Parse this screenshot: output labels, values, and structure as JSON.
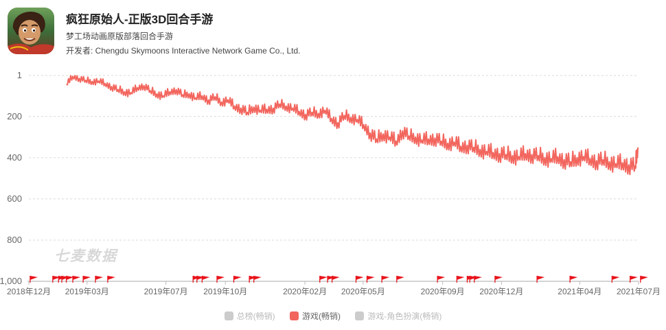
{
  "app": {
    "title": "疯狂原始人-正版3D回合手游",
    "subtitle": "梦工场动画原版部落回合手游",
    "developer": "开发者: Chengdu Skymoons Interactive Network Game Co., Ltd.",
    "icon": "app-icon-caveman"
  },
  "watermark": "七麦数据",
  "colors": {
    "series": "#f2665e",
    "grid": "#d9d9d9",
    "axis": "#999999",
    "flag": "#e8141c",
    "legend_inactive": "#cccccc"
  },
  "legend": [
    {
      "label": "总榜(畅销)",
      "active": false
    },
    {
      "label": "游戏(畅销)",
      "active": true
    },
    {
      "label": "游戏-角色扮演(畅销)",
      "active": false
    }
  ],
  "chart_data": {
    "type": "line",
    "title": "",
    "xlabel": "",
    "ylabel": "",
    "y_inverted": true,
    "ylim": [
      1,
      1000
    ],
    "yticks": [
      "1",
      "200",
      "400",
      "600",
      "800",
      "1,000"
    ],
    "xlim": [
      "2018-12-01",
      "2021-07-01"
    ],
    "xticks": [
      "2018年12月",
      "2019年03月",
      "2019年07月",
      "2019年10月",
      "2020年02月",
      "2020年05月",
      "2020年09月",
      "2020年12月",
      "2021年04月",
      "2021年07月"
    ],
    "grid": true,
    "legend_position": "bottom",
    "series": [
      {
        "name": "游戏(畅销)",
        "x": [
          "2019-01-28",
          "2019-02-07",
          "2019-02-17",
          "2019-02-27",
          "2019-03-09",
          "2019-03-19",
          "2019-03-29",
          "2019-04-08",
          "2019-04-18",
          "2019-04-28",
          "2019-05-08",
          "2019-05-18",
          "2019-05-28",
          "2019-06-07",
          "2019-06-17",
          "2019-06-27",
          "2019-07-07",
          "2019-07-17",
          "2019-07-27",
          "2019-08-06",
          "2019-08-16",
          "2019-08-26",
          "2019-09-05",
          "2019-09-15",
          "2019-09-25",
          "2019-10-05",
          "2019-10-15",
          "2019-10-25",
          "2019-11-04",
          "2019-11-14",
          "2019-11-24",
          "2019-12-04",
          "2019-12-14",
          "2019-12-24",
          "2020-01-03",
          "2020-01-13",
          "2020-01-23",
          "2020-02-02",
          "2020-02-12",
          "2020-02-22",
          "2020-03-03",
          "2020-03-13",
          "2020-03-23",
          "2020-04-02",
          "2020-04-12",
          "2020-04-22",
          "2020-05-02",
          "2020-05-12",
          "2020-05-22",
          "2020-06-01",
          "2020-06-11",
          "2020-06-21",
          "2020-07-01",
          "2020-07-11",
          "2020-07-21",
          "2020-07-31",
          "2020-08-10",
          "2020-08-20",
          "2020-08-30",
          "2020-09-09",
          "2020-09-19",
          "2020-09-29",
          "2020-10-09",
          "2020-10-19",
          "2020-10-29",
          "2020-11-08",
          "2020-11-18",
          "2020-11-28",
          "2020-12-08",
          "2020-12-18",
          "2020-12-28",
          "2021-01-07",
          "2021-01-17",
          "2021-01-27",
          "2021-02-06",
          "2021-02-16",
          "2021-02-26",
          "2021-03-08",
          "2021-03-18",
          "2021-03-28",
          "2021-04-07",
          "2021-04-17",
          "2021-04-27",
          "2021-05-07",
          "2021-05-17",
          "2021-05-27",
          "2021-06-06",
          "2021-06-16",
          "2021-06-26",
          "2021-06-30"
        ],
        "values": [
          45,
          5,
          15,
          25,
          30,
          28,
          40,
          55,
          70,
          80,
          85,
          60,
          50,
          75,
          90,
          100,
          80,
          70,
          95,
          90,
          110,
          100,
          120,
          105,
          130,
          120,
          150,
          160,
          180,
          155,
          170,
          165,
          160,
          140,
          150,
          160,
          175,
          190,
          180,
          185,
          170,
          210,
          230,
          195,
          205,
          215,
          240,
          280,
          310,
          285,
          300,
          320,
          270,
          295,
          300,
          315,
          310,
          305,
          320,
          330,
          325,
          345,
          340,
          350,
          360,
          370,
          375,
          380,
          385,
          390,
          395,
          380,
          385,
          390,
          400,
          405,
          395,
          410,
          420,
          400,
          395,
          405,
          415,
          410,
          420,
          430,
          425,
          435,
          440,
          350
        ]
      }
    ],
    "event_flags": [
      "2018-12-03",
      "2019-01-07",
      "2019-01-16",
      "2019-01-21",
      "2019-01-28",
      "2019-02-07",
      "2019-02-23",
      "2019-03-14",
      "2019-04-02",
      "2019-08-12",
      "2019-08-18",
      "2019-08-26",
      "2019-09-18",
      "2019-10-14",
      "2019-11-07",
      "2019-11-14",
      "2020-02-24",
      "2020-03-07",
      "2020-03-14",
      "2020-04-20",
      "2020-05-07",
      "2020-05-30",
      "2020-06-22",
      "2020-08-24",
      "2020-09-23",
      "2020-10-09",
      "2020-10-13",
      "2020-10-20",
      "2020-11-21",
      "2021-01-25",
      "2021-03-17",
      "2021-05-21",
      "2021-06-18",
      "2021-07-04"
    ]
  }
}
